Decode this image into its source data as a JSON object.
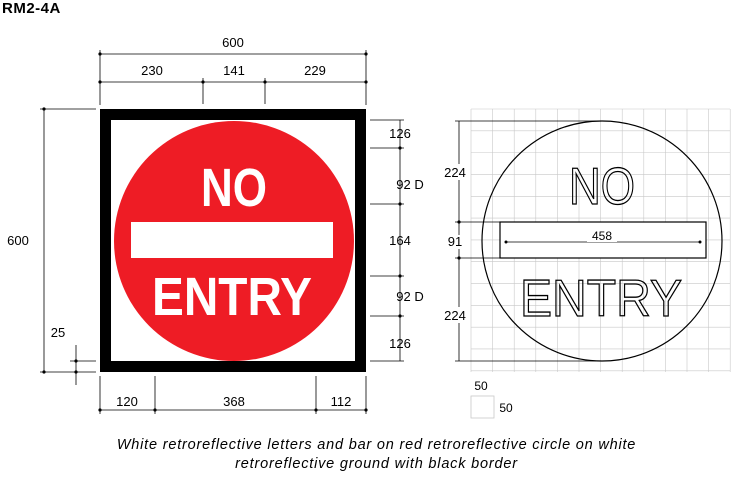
{
  "sign_code": "RM2-4A",
  "sign_face": {
    "line1": "NO",
    "line2": "ENTRY"
  },
  "dimensions": {
    "overall_width": "600",
    "top_splits": [
      "230",
      "141",
      "229"
    ],
    "overall_height": "600",
    "right_stack": [
      "126",
      "92 D",
      "164",
      "92 D",
      "126"
    ],
    "border": "25",
    "bottom_splits": [
      "120",
      "368",
      "112"
    ]
  },
  "layout_diagram": {
    "upper_height": "224",
    "bar_height": "91",
    "lower_height": "224",
    "bar_width": "458",
    "grid_legend_width": "50",
    "grid_legend_height": "50"
  },
  "colors": {
    "red": "#ee1c25",
    "black": "#000000",
    "white": "#ffffff",
    "grid": "#c8c8c8"
  },
  "caption": {
    "line1": "White retroreflective letters and bar on red retroreflective circle on white",
    "line2": "retroreflective ground with black border"
  }
}
